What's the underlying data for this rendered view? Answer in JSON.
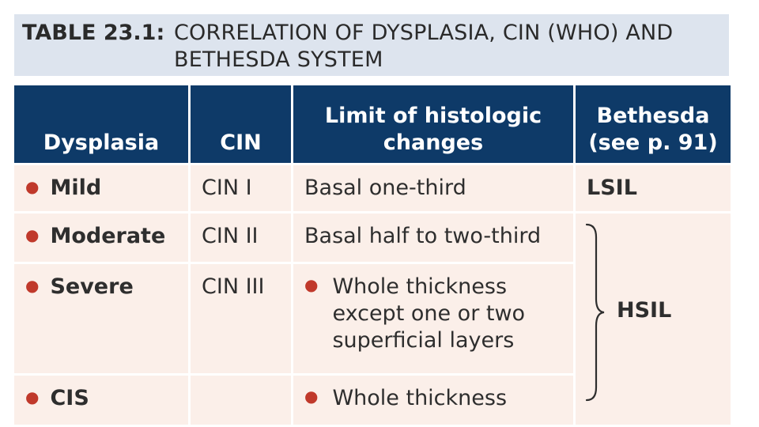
{
  "title": {
    "number": "TABLE 23.1:",
    "line1": "CORRELATION OF DYSPLASIA, CIN (WHO) AND",
    "line2": "BETHESDA SYSTEM"
  },
  "headers": {
    "dysplasia": "Dysplasia",
    "cin": "CIN",
    "limit_line1": "Limit of histologic",
    "limit_line2": "changes",
    "bethesda_line1": "Bethesda",
    "bethesda_line2": "(see p. 91)"
  },
  "rows": [
    {
      "dysplasia": "Mild",
      "cin": "CIN I",
      "limit": "Basal one-third",
      "bethesda": "LSIL"
    },
    {
      "dysplasia": "Moderate",
      "cin": "CIN II",
      "limit": "Basal half to two-third"
    },
    {
      "dysplasia": "Severe",
      "cin": "CIN III",
      "limit_lines": [
        "Whole thickness",
        "except one or two",
        "superficial layers"
      ]
    },
    {
      "dysplasia": "CIS",
      "cin": "",
      "limit": "Whole thickness"
    }
  ],
  "grouped_bethesda": "HSIL",
  "colors": {
    "header_bg": "#0e3a68",
    "cell_bg": "#fbefe9",
    "title_bg": "#dde4ee",
    "bullet": "#c0392b"
  },
  "bullet_symbol": "●"
}
